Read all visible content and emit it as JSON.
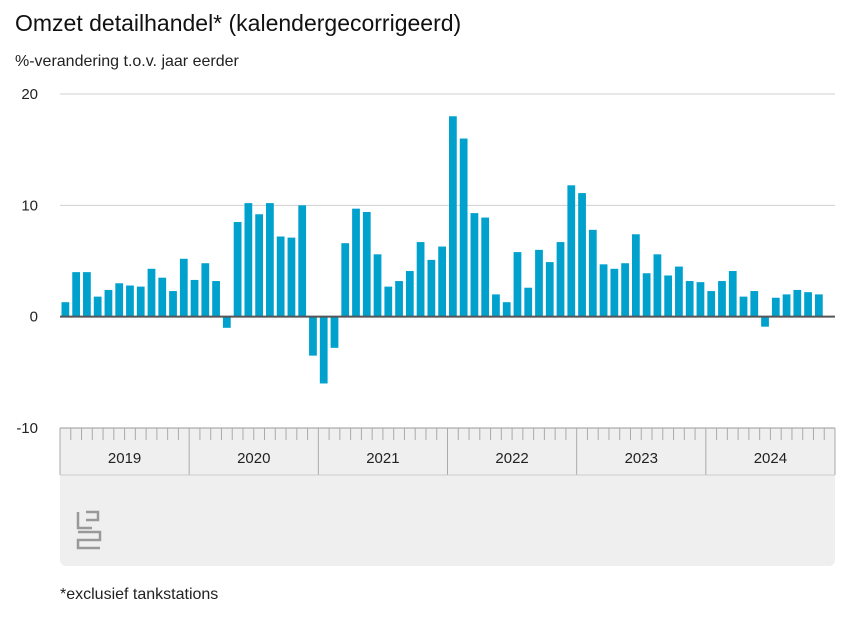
{
  "title": "Omzet detailhandel* (kalendergecorrigeerd)",
  "ylabel": "%-verandering t.o.v. jaar eerder",
  "footnote": "*exclusief tankstations",
  "logo": "cbs",
  "colors": {
    "bar": "#00a1cd",
    "grid": "#d0d0d0",
    "zero": "#555555"
  },
  "chart_data": {
    "type": "bar",
    "title": "Omzet detailhandel* (kalendergecorrigeerd)",
    "xlabel": "",
    "ylabel": "%-verandering t.o.v. jaar eerder",
    "ylim": [
      -10,
      20
    ],
    "yticks": [
      "20",
      "10",
      "0",
      "-10"
    ],
    "ytick_values": [
      20,
      10,
      0,
      -10
    ],
    "years": [
      "2019",
      "2020",
      "2021",
      "2022",
      "2023",
      "2024"
    ],
    "frequency": "monthly",
    "values": [
      1.3,
      4.0,
      4.0,
      1.8,
      2.4,
      3.0,
      2.8,
      2.7,
      4.3,
      3.5,
      2.3,
      5.2,
      3.3,
      4.8,
      3.2,
      -1.0,
      8.5,
      10.2,
      9.2,
      10.2,
      7.2,
      7.1,
      10.0,
      -3.5,
      -6.0,
      -2.8,
      6.6,
      9.7,
      9.4,
      5.6,
      2.7,
      3.2,
      4.1,
      6.7,
      5.1,
      6.3,
      18.0,
      16.0,
      9.3,
      8.9,
      2.0,
      1.3,
      5.8,
      2.6,
      6.0,
      4.9,
      6.7,
      11.8,
      11.1,
      7.8,
      4.7,
      4.3,
      4.8,
      7.4,
      3.9,
      5.6,
      3.7,
      4.5,
      3.2,
      3.1,
      2.3,
      3.2,
      4.1,
      1.8,
      2.3,
      -0.9,
      1.7,
      2.0,
      2.4,
      2.2,
      2.0
    ],
    "grid": true,
    "legend": "none"
  }
}
